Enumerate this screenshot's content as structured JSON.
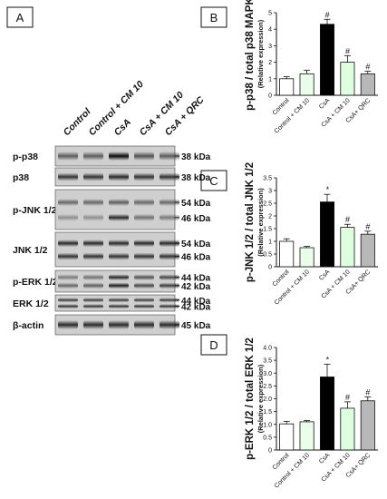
{
  "panel_letters": {
    "a": "A",
    "b": "B",
    "c": "C",
    "d": "D"
  },
  "blot": {
    "lanes": [
      "Control",
      "Control + CM 10",
      "CsA",
      "CsA + CM 10",
      "CsA + QRC"
    ],
    "rows": [
      {
        "label": "p-p38",
        "markers": [
          "38 kDa"
        ],
        "bands": 1
      },
      {
        "label": "p38",
        "markers": [
          "38 kDa"
        ],
        "bands": 1
      },
      {
        "label": "p-JNK 1/2",
        "markers": [
          "54 kDa",
          "46 kDa"
        ],
        "bands": 2
      },
      {
        "label": "JNK 1/2",
        "markers": [
          "54 kDa",
          "46 kDa"
        ],
        "bands": 2
      },
      {
        "label": "p-ERK 1/2",
        "markers": [
          "44 kDa",
          "42 kDa"
        ],
        "bands": 2
      },
      {
        "label": "ERK 1/2",
        "markers": [
          "44 kDa",
          "42 kDa"
        ],
        "bands": 2
      },
      {
        "label": "β-actin",
        "markers": [
          "45 kDa"
        ],
        "bands": 1
      }
    ]
  },
  "colors": {
    "control": "#ffffff",
    "cm10": "#eaffea",
    "csa": "#000000",
    "csa_cm10": "#ddffdd",
    "csa_qrc": "#b8b8b8"
  },
  "chart_data": [
    {
      "type": "bar",
      "panel": "B",
      "categories": [
        "Control",
        "Control + CM 10",
        "CsA",
        "CsA + CM 10",
        "CsA+ QRC"
      ],
      "values": [
        1.0,
        1.3,
        4.3,
        2.0,
        1.3
      ],
      "errors": [
        0.12,
        0.22,
        0.3,
        0.4,
        0.15
      ],
      "significance": [
        "",
        "",
        "#",
        "#",
        "#"
      ],
      "ylabel": "p-p38 / total p38 MAPK",
      "ylabel_sub": "(Relative expression)",
      "ylim": [
        0,
        5
      ],
      "yticks": [
        "0",
        "1",
        "2",
        "3",
        "4",
        "5"
      ]
    },
    {
      "type": "bar",
      "panel": "C",
      "categories": [
        "Control",
        "Control + CM 10",
        "CsA",
        "CsA + CM 10",
        "CsA+ QRC"
      ],
      "values": [
        1.0,
        0.75,
        2.55,
        1.55,
        1.28
      ],
      "errors": [
        0.1,
        0.05,
        0.3,
        0.12,
        0.12
      ],
      "significance": [
        "",
        "",
        "*",
        "#",
        "#"
      ],
      "ylabel": "p-JNK 1/2 / total JNK 1/2",
      "ylabel_sub": "(Relative expression)",
      "ylim": [
        0,
        3.5
      ],
      "yticks": [
        "0",
        "0.5",
        "1",
        "1.5",
        "2",
        "2.5",
        "3",
        "3.5"
      ]
    },
    {
      "type": "bar",
      "panel": "D",
      "categories": [
        "Control",
        "Control + CM 10",
        "CsA",
        "CsA + CM 10",
        "CsA+ QRC"
      ],
      "values": [
        1.02,
        1.1,
        2.85,
        1.63,
        1.92
      ],
      "errors": [
        0.1,
        0.05,
        0.5,
        0.25,
        0.15
      ],
      "significance": [
        "",
        "",
        "*",
        "#",
        "#"
      ],
      "ylabel": "p-ERK 1/2 / total ERK 1/2",
      "ylabel_sub": "(Relative expression)",
      "ylim": [
        0,
        4
      ],
      "yticks": [
        "0",
        "0.5",
        "1.0",
        "1.5",
        "2.0",
        "2.5",
        "3.0",
        "3.5",
        "4.0"
      ]
    }
  ]
}
